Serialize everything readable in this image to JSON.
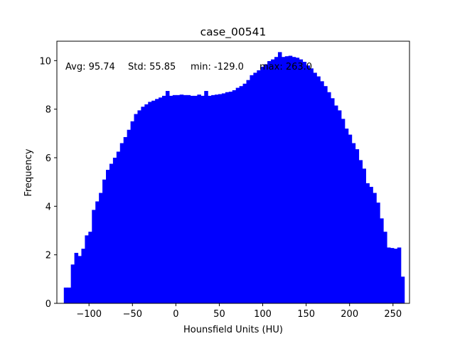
{
  "chart_data": {
    "type": "bar",
    "title": "case_00541",
    "xlabel": "Hounsfield Units (HU)",
    "ylabel": "Frequency",
    "xlim": [
      -137,
      269
    ],
    "ylim": [
      0,
      10.8
    ],
    "x_ticks": [
      -100,
      -50,
      0,
      50,
      100,
      150,
      200,
      250
    ],
    "x_tick_labels": [
      "−100",
      "−50",
      "0",
      "50",
      "100",
      "150",
      "200",
      "250"
    ],
    "y_ticks": [
      0,
      2,
      4,
      6,
      8,
      10
    ],
    "y_tick_labels": [
      "0",
      "2",
      "4",
      "6",
      "8",
      "10"
    ],
    "grid": false,
    "bar_color": "#0000ff",
    "bin_start": -129.0,
    "bin_end": 263.0,
    "stats": {
      "avg": "Avg: 95.74",
      "std": "Std: 55.85",
      "min": "min: -129.0",
      "max": "max: 263.0"
    },
    "values": [
      0.65,
      0.65,
      1.6,
      2.08,
      1.95,
      2.25,
      2.8,
      2.95,
      3.85,
      4.2,
      4.55,
      5.1,
      5.5,
      5.75,
      6.0,
      6.25,
      6.6,
      6.85,
      7.15,
      7.5,
      7.8,
      7.95,
      8.1,
      8.2,
      8.3,
      8.35,
      8.42,
      8.48,
      8.55,
      8.75,
      8.55,
      8.58,
      8.58,
      8.6,
      8.58,
      8.58,
      8.55,
      8.55,
      8.6,
      8.55,
      8.75,
      8.55,
      8.58,
      8.6,
      8.62,
      8.65,
      8.7,
      8.72,
      8.78,
      8.88,
      8.95,
      9.05,
      9.2,
      9.4,
      9.5,
      9.6,
      9.75,
      9.85,
      9.98,
      10.05,
      10.15,
      10.35,
      10.15,
      10.18,
      10.2,
      10.15,
      10.12,
      10.05,
      9.95,
      9.8,
      9.68,
      9.5,
      9.35,
      9.15,
      8.95,
      8.7,
      8.45,
      8.15,
      7.95,
      7.6,
      7.2,
      6.95,
      6.6,
      6.35,
      5.9,
      5.55,
      4.95,
      4.8,
      4.55,
      4.15,
      3.5,
      2.95,
      2.3,
      2.28,
      2.25,
      2.3,
      1.1
    ]
  }
}
